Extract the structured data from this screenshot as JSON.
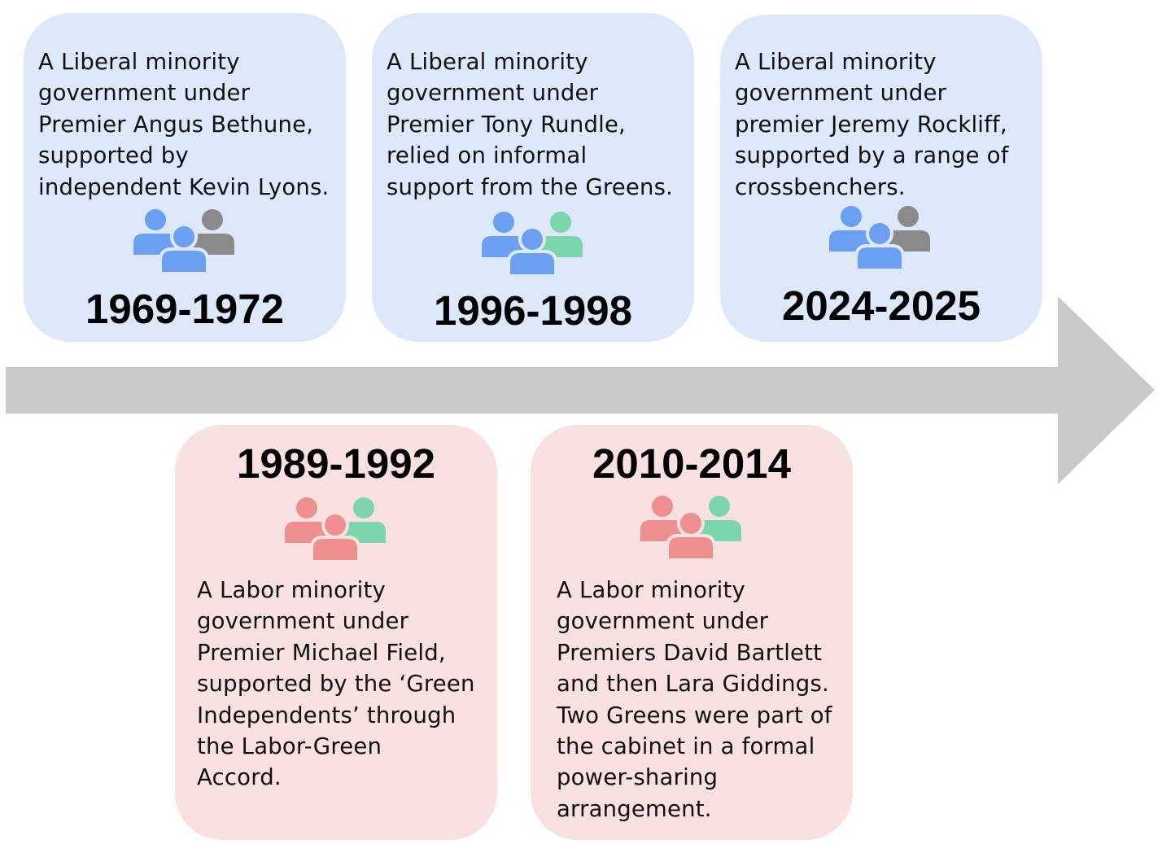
{
  "colors": {
    "liberal_card": "#dde8fb",
    "labor_card": "#f9e0e1",
    "arrow": "#c9c9c9",
    "liberal_person": "#6b9ff1",
    "labor_person": "#f08f8f",
    "green_person": "#7bd6ab",
    "independent_person": "#8a8a8a"
  },
  "timeline": {
    "above": [
      {
        "years": "1969-1972",
        "description": [
          "A Liberal minority",
          "government under",
          "Premier Angus Bethune,",
          "supported by",
          "independent Kevin Lyons."
        ],
        "icon": "people-group-icon",
        "icon_colors": [
          "liberal",
          "liberal",
          "independent"
        ]
      },
      {
        "years": "1996-1998",
        "description": [
          "A Liberal minority",
          "government under",
          "Premier Tony Rundle,",
          "relied on informal",
          "support from the Greens."
        ],
        "icon": "people-group-icon",
        "icon_colors": [
          "liberal",
          "liberal",
          "green"
        ]
      },
      {
        "years": "2024-2025",
        "description": [
          "A Liberal minority",
          "government under",
          "premier Jeremy Rockliff,",
          "supported by a range of",
          "crossbenchers."
        ],
        "icon": "people-group-icon",
        "icon_colors": [
          "liberal",
          "liberal",
          "independent"
        ]
      }
    ],
    "below": [
      {
        "years": "1989-1992",
        "description": [
          "A Labor minority",
          "government under",
          "Premier Michael Field,",
          "supported by the ‘Green",
          "Independents’ through",
          "the Labor-Green",
          "Accord."
        ],
        "icon": "people-group-icon",
        "icon_colors": [
          "labor",
          "labor",
          "green"
        ]
      },
      {
        "years": "2010-2014",
        "description": [
          "A Labor minority",
          "government under",
          "Premiers David Bartlett",
          "and then Lara Giddings.",
          "Two Greens were part of",
          "the cabinet in a formal",
          "power-sharing",
          "arrangement."
        ],
        "icon": "people-group-icon",
        "icon_colors": [
          "labor",
          "labor",
          "green"
        ]
      }
    ]
  }
}
